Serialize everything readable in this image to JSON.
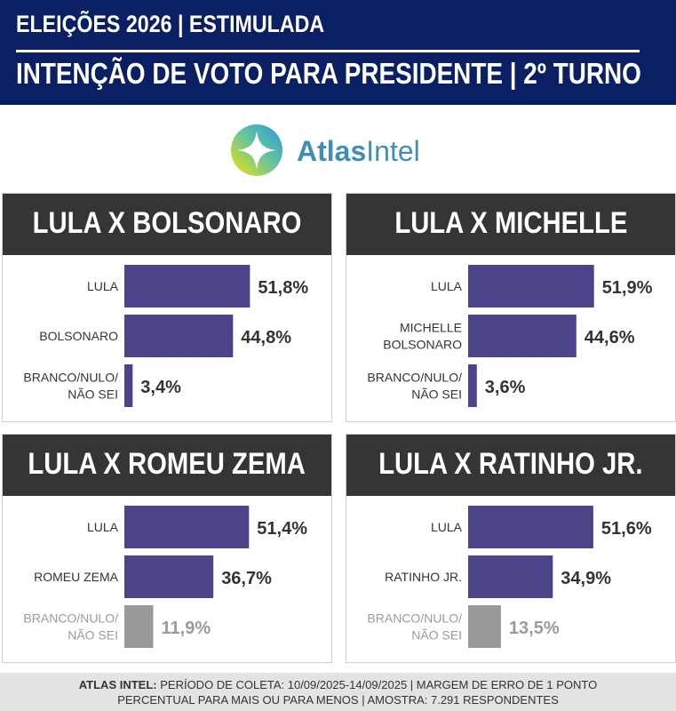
{
  "header": {
    "line1": "ELEIÇÕES 2026 | ESTIMULADA",
    "line2": "INTENÇÃO DE VOTO PARA PRESIDENTE | 2º TURNO"
  },
  "brand": {
    "name_bold": "Atlas",
    "name_light": "Intel",
    "logo_icon": "atlasintel-logo-icon"
  },
  "colors": {
    "header_bg": "#0b1f63",
    "panel_head_bg": "#353535",
    "candidate_bar": "#4b4488",
    "blank_bar": "#999999",
    "blank_text": "#9a9a9a",
    "value_text": "#333333"
  },
  "chart_data": [
    {
      "type": "bar",
      "title": "LULA X BOLSONARO",
      "categories": [
        [
          "LULA"
        ],
        [
          "BOLSONARO"
        ],
        [
          "BRANCO/NULO/",
          "NÃO SEI"
        ]
      ],
      "values": [
        51.8,
        44.8,
        3.4
      ],
      "value_labels": [
        "51,8%",
        "44,8%",
        "3,4%"
      ],
      "muted": [
        false,
        false,
        false
      ]
    },
    {
      "type": "bar",
      "title": "LULA X MICHELLE",
      "categories": [
        [
          "LULA"
        ],
        [
          "MICHELLE",
          "BOLSONARO"
        ],
        [
          "BRANCO/NULO/",
          "NÃO SEI"
        ]
      ],
      "values": [
        51.9,
        44.6,
        3.6
      ],
      "value_labels": [
        "51,9%",
        "44,6%",
        "3,6%"
      ],
      "muted": [
        false,
        false,
        false
      ]
    },
    {
      "type": "bar",
      "title": "LULA X ROMEU ZEMA",
      "categories": [
        [
          "LULA"
        ],
        [
          "ROMEU ZEMA"
        ],
        [
          "BRANCO/NULO/",
          "NÃO SEI"
        ]
      ],
      "values": [
        51.4,
        36.7,
        11.9
      ],
      "value_labels": [
        "51,4%",
        "36,7%",
        "11,9%"
      ],
      "muted": [
        false,
        false,
        true
      ]
    },
    {
      "type": "bar",
      "title": "LULA X RATINHO JR.",
      "categories": [
        [
          "LULA"
        ],
        [
          "RATINHO JR."
        ],
        [
          "BRANCO/NULO/",
          "NÃO SEI"
        ]
      ],
      "values": [
        51.6,
        34.9,
        13.5
      ],
      "value_labels": [
        "51,6%",
        "34,9%",
        "13,5%"
      ],
      "muted": [
        false,
        false,
        true
      ]
    }
  ],
  "footer": {
    "source_bold": "ATLAS INTEL:",
    "line1_rest": " PERÍODO DE COLETA: 10/09/2025-14/09/2025 | MARGEM DE ERRO DE 1 PONTO",
    "line2": "PERCENTUAL PARA MAIS OU PARA MENOS | AMOSTRA: 7.291 RESPONDENTES"
  }
}
